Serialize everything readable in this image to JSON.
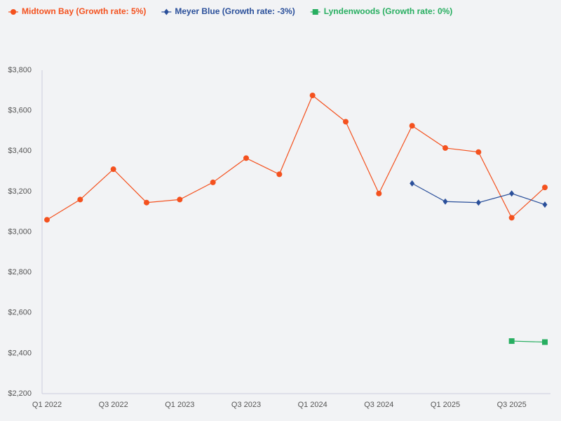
{
  "chart_data": {
    "type": "line",
    "categories": [
      "Q1 2022",
      null,
      "Q3 2022",
      null,
      "Q1 2023",
      null,
      "Q3 2023",
      null,
      "Q1 2024",
      null,
      "Q3 2024",
      null,
      "Q1 2025",
      null,
      "Q3 2025",
      null
    ],
    "series": [
      {
        "name": "Midtown Bay (Growth rate: 5%)",
        "color": "#f4511e",
        "marker": "circle",
        "values": [
          3060,
          3160,
          3310,
          3145,
          3160,
          3245,
          3365,
          3285,
          3675,
          3545,
          3190,
          3525,
          3415,
          3395,
          3070,
          3220
        ]
      },
      {
        "name": "Meyer Blue (Growth rate: -3%)",
        "color": "#2a4f9a",
        "marker": "diamond",
        "values": [
          null,
          null,
          null,
          null,
          null,
          null,
          null,
          null,
          null,
          null,
          null,
          3240,
          3150,
          3145,
          3190,
          3135
        ]
      },
      {
        "name": "Lyndenwoods (Growth rate: 0%)",
        "color": "#27ae60",
        "marker": "square",
        "values": [
          null,
          null,
          null,
          null,
          null,
          null,
          null,
          null,
          null,
          null,
          null,
          null,
          null,
          null,
          2460,
          2455
        ]
      }
    ],
    "ylim": [
      2200,
      3800
    ],
    "yticks": [
      {
        "value": 2200,
        "label": "$2,200"
      },
      {
        "value": 2400,
        "label": "$2,400"
      },
      {
        "value": 2600,
        "label": "$2,600"
      },
      {
        "value": 2800,
        "label": "$2,800"
      },
      {
        "value": 3000,
        "label": "$3,000"
      },
      {
        "value": 3200,
        "label": "$3,200"
      },
      {
        "value": 3400,
        "label": "$3,400"
      },
      {
        "value": 3600,
        "label": "$3,600"
      },
      {
        "value": 3800,
        "label": "$3,800"
      }
    ],
    "grid": false
  }
}
